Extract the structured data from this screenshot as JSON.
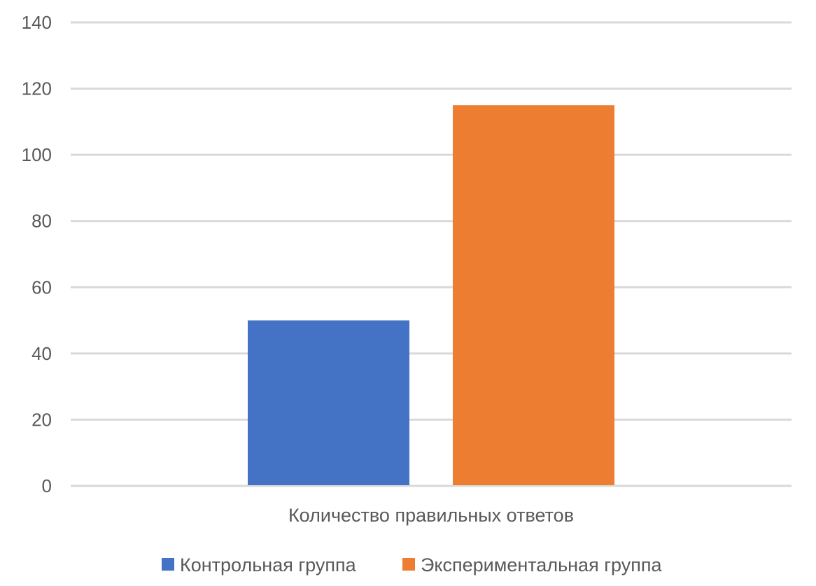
{
  "chart_data": {
    "type": "bar",
    "categories": [
      "Количество правильных ответов"
    ],
    "series": [
      {
        "name": "Контрольная группа",
        "values": [
          50
        ],
        "color": "#4472C4"
      },
      {
        "name": "Экспериментальная группа",
        "values": [
          115
        ],
        "color": "#ED7D31"
      }
    ],
    "title": "",
    "xlabel": "",
    "ylabel": "",
    "ylim": [
      0,
      140
    ],
    "yticks": [
      "0",
      "20",
      "40",
      "60",
      "80",
      "100",
      "120",
      "140"
    ],
    "grid": true,
    "legend_position": "bottom"
  }
}
